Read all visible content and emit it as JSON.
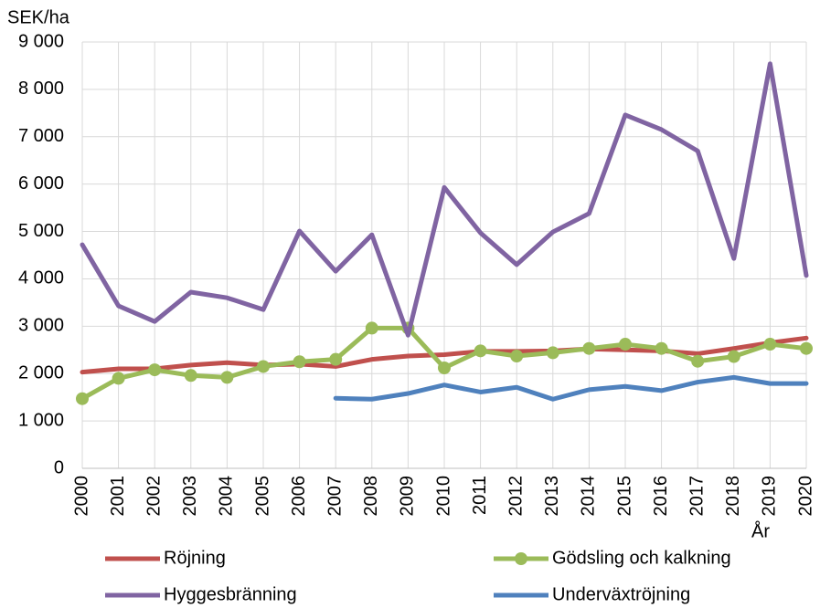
{
  "chart_data": {
    "type": "line",
    "y_label": "SEK/ha",
    "x_label": "År",
    "categories": [
      "2000",
      "2001",
      "2002",
      "2003",
      "2004",
      "2005",
      "2006",
      "2007",
      "2008",
      "2009",
      "2010",
      "2011",
      "2012",
      "2013",
      "2014",
      "2015",
      "2016",
      "2017",
      "2018",
      "2019",
      "2020"
    ],
    "series": [
      {
        "name": "Röjning",
        "color": "#c0504d",
        "markers": false,
        "values": [
          2030,
          2100,
          2100,
          2180,
          2230,
          2180,
          2200,
          2150,
          2300,
          2370,
          2400,
          2470,
          2470,
          2480,
          2520,
          2500,
          2480,
          2420,
          2530,
          2650,
          2750
        ]
      },
      {
        "name": "Gödsling och kalkning",
        "color": "#9bbb59",
        "markers": true,
        "values": [
          1470,
          1900,
          2080,
          1960,
          1920,
          2150,
          2250,
          2300,
          2960,
          2960,
          2120,
          2480,
          2370,
          2440,
          2530,
          2620,
          2530,
          2260,
          2360,
          2620,
          2530
        ]
      },
      {
        "name": "Hyggesbränning",
        "color": "#8064a2",
        "markers": false,
        "values": [
          4720,
          3430,
          3100,
          3720,
          3600,
          3350,
          5010,
          4160,
          4930,
          2810,
          5930,
          4970,
          4300,
          4990,
          5380,
          7460,
          7150,
          6700,
          4430,
          8540,
          4070
        ]
      },
      {
        "name": "Underväxtröjning",
        "color": "#4f81bd",
        "markers": false,
        "values": [
          null,
          null,
          null,
          null,
          null,
          null,
          null,
          1480,
          1460,
          1580,
          1760,
          1610,
          1710,
          1460,
          1660,
          1730,
          1640,
          1820,
          1920,
          1790,
          1790
        ]
      }
    ],
    "ylim": [
      0,
      9000
    ],
    "yticks": [
      0,
      {
        "value": 1000,
        "label": "1 000"
      },
      {
        "value": 2000,
        "label": "2 000"
      },
      {
        "value": 3000,
        "label": "3 000"
      },
      {
        "value": 4000,
        "label": "4 000"
      },
      {
        "value": 5000,
        "label": "5 000"
      },
      {
        "value": 6000,
        "label": "6 000"
      },
      {
        "value": 7000,
        "label": "7 000"
      },
      {
        "value": 8000,
        "label": "8 000"
      },
      {
        "value": 9000,
        "label": "9 000"
      }
    ],
    "grid": true,
    "legend": "bottom"
  }
}
